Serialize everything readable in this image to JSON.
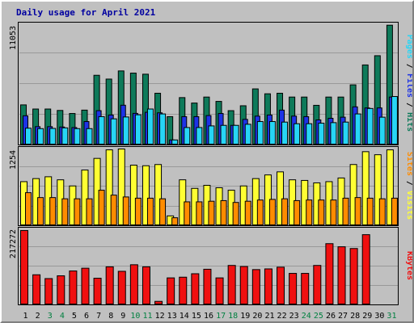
{
  "title": "Daily usage for April 2021",
  "colors": {
    "hits": "#0e7a5a",
    "files": "#1d33e6",
    "pages": "#27d5f5",
    "visits": "#ffff33",
    "sites": "#ff8c00",
    "kbytes": "#f01010",
    "weekend_label": "#008040",
    "weekday_label": "#000000",
    "panel_bg": "#c0c0c0"
  },
  "chart_data": [
    {
      "type": "bar",
      "panel": "top",
      "title": "Daily usage for April 2021",
      "ylabel_parts": [
        {
          "text": "Pages",
          "color": "#27d5f5"
        },
        {
          "text": " / ",
          "color": "#000000"
        },
        {
          "text": "Files",
          "color": "#1d33e6"
        },
        {
          "text": " / ",
          "color": "#000000"
        },
        {
          "text": "Hits",
          "color": "#0e7a5a"
        }
      ],
      "max_label": "11053",
      "ylim": [
        0,
        11053
      ],
      "categories": [
        "1",
        "2",
        "3",
        "4",
        "5",
        "6",
        "7",
        "8",
        "9",
        "10",
        "11",
        "12",
        "13",
        "14",
        "15",
        "16",
        "17",
        "18",
        "19",
        "20",
        "21",
        "22",
        "23",
        "24",
        "25",
        "26",
        "27",
        "28",
        "29",
        "30",
        "31"
      ],
      "weekend_days": [
        "3",
        "4",
        "10",
        "11",
        "17",
        "18",
        "24",
        "25",
        "31"
      ],
      "series": [
        {
          "name": "Hits",
          "values": [
            3680,
            3300,
            3300,
            3170,
            2890,
            3200,
            6400,
            6050,
            6800,
            6600,
            6500,
            4750,
            2600,
            4350,
            3850,
            4400,
            4000,
            3150,
            3600,
            5150,
            4700,
            4750,
            4400,
            4400,
            3640,
            4400,
            4400,
            5520,
            7350,
            8200,
            11000
          ]
        },
        {
          "name": "Files",
          "values": [
            2680,
            1680,
            1680,
            1650,
            1600,
            2150,
            3150,
            2750,
            3650,
            2900,
            3000,
            2950,
            460,
            2600,
            2600,
            2700,
            2890,
            1800,
            2350,
            2650,
            2750,
            3200,
            2650,
            2600,
            2300,
            2450,
            2550,
            3500,
            3400,
            3400,
            4400
          ]
        },
        {
          "name": "Pages",
          "values": [
            1540,
            1500,
            1520,
            1570,
            1500,
            1500,
            2600,
            2400,
            2570,
            2770,
            3300,
            2850,
            460,
            1600,
            1600,
            1750,
            1800,
            1800,
            1900,
            2150,
            2150,
            2100,
            1950,
            1950,
            2000,
            2050,
            2100,
            2850,
            3350,
            2550,
            4450
          ]
        }
      ]
    },
    {
      "type": "bar",
      "panel": "middle",
      "ylabel_parts": [
        {
          "text": "Sites",
          "color": "#ff8c00"
        },
        {
          "text": " / ",
          "color": "#000000"
        },
        {
          "text": "Visits",
          "color": "#ffff33"
        }
      ],
      "max_label": "1254",
      "ylim": [
        0,
        1254
      ],
      "categories": [
        "1",
        "2",
        "3",
        "4",
        "5",
        "6",
        "7",
        "8",
        "9",
        "10",
        "11",
        "12",
        "13",
        "14",
        "15",
        "16",
        "17",
        "18",
        "19",
        "20",
        "21",
        "22",
        "23",
        "24",
        "25",
        "26",
        "27",
        "28",
        "29",
        "30",
        "31"
      ],
      "series": [
        {
          "name": "Visits",
          "values": [
            720,
            770,
            800,
            750,
            650,
            910,
            1100,
            1240,
            1260,
            990,
            980,
            1000,
            160,
            750,
            610,
            660,
            620,
            580,
            650,
            770,
            830,
            880,
            750,
            740,
            700,
            720,
            780,
            1000,
            1210,
            1160,
            1240
          ]
        },
        {
          "name": "Sites",
          "values": [
            540,
            460,
            460,
            440,
            440,
            440,
            580,
            500,
            470,
            450,
            450,
            440,
            130,
            390,
            390,
            400,
            410,
            380,
            400,
            420,
            430,
            440,
            410,
            420,
            420,
            420,
            450,
            460,
            450,
            440,
            450
          ]
        }
      ]
    },
    {
      "type": "bar",
      "panel": "bottom",
      "ylabel_parts": [
        {
          "text": "KBytes",
          "color": "#f01010"
        }
      ],
      "max_label": "217272",
      "ylim": [
        0,
        217272
      ],
      "categories": [
        "1",
        "2",
        "3",
        "4",
        "5",
        "6",
        "7",
        "8",
        "9",
        "10",
        "11",
        "12",
        "13",
        "14",
        "15",
        "16",
        "17",
        "18",
        "19",
        "20",
        "21",
        "22",
        "23",
        "24",
        "25",
        "26",
        "27",
        "28",
        "29",
        "30",
        "31"
      ],
      "series": [
        {
          "name": "KBytes",
          "values": [
            215000,
            87000,
            76000,
            84000,
            98000,
            106000,
            77000,
            110000,
            97000,
            116000,
            110000,
            10000,
            78000,
            80000,
            90000,
            103000,
            78000,
            114000,
            111000,
            102000,
            104000,
            109000,
            91000,
            91000,
            114000,
            177000,
            168000,
            163000,
            203000,
            0,
            0
          ]
        }
      ]
    }
  ]
}
